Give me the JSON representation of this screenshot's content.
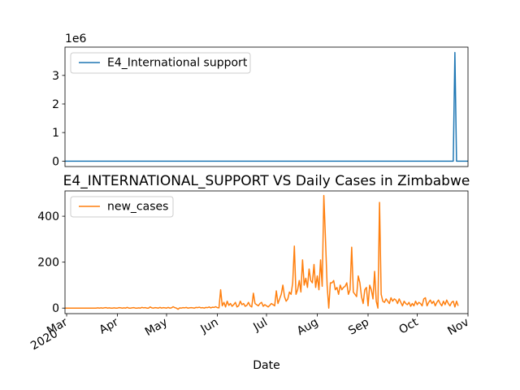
{
  "colors": {
    "series1": "#1f77b4",
    "series2": "#ff7f0e",
    "axis": "#000000",
    "legend_border": "#cccccc"
  },
  "chart_data": [
    {
      "type": "line",
      "title": "",
      "xlabel": "",
      "ylabel": "",
      "offset_text": "1e6",
      "xlim": [
        "2020-02-29",
        "2020-11-01"
      ],
      "ylim": [
        -0.19,
        3.99
      ],
      "yticks": [
        0,
        1,
        2,
        3
      ],
      "ytick_labels": [
        "0",
        "1",
        "2",
        "3"
      ],
      "legend": "upper left",
      "series": [
        {
          "name": "E4_International support",
          "values_unit": "1e6",
          "baseline": 0,
          "points": [
            {
              "x": "2020-10-23",
              "y": 0
            },
            {
              "x": "2020-10-24",
              "y": 3.8
            },
            {
              "x": "2020-10-25",
              "y": 0
            }
          ]
        }
      ]
    },
    {
      "type": "line",
      "title": "E4_INTERNATIONAL_SUPPORT VS Daily Cases in Zimbabwe",
      "xlabel": "Date",
      "ylabel": "",
      "xlim": [
        "2020-02-29",
        "2020-11-01"
      ],
      "ylim": [
        -24,
        510
      ],
      "yticks": [
        0,
        200,
        400
      ],
      "ytick_labels": [
        "0",
        "200",
        "400"
      ],
      "xticks": [
        "2020-03-01",
        "2020-04-01",
        "2020-05-01",
        "2020-06-01",
        "2020-07-01",
        "2020-08-01",
        "2020-09-01",
        "2020-10-01",
        "2020-11-01"
      ],
      "xtick_labels": [
        "Mar\n2020",
        "Apr",
        "May",
        "Jun",
        "Jul",
        "Aug",
        "Sep",
        "Oct",
        "Nov"
      ],
      "legend": "upper left",
      "series": [
        {
          "name": "new_cases",
          "start": "2020-02-29",
          "values": [
            0,
            0,
            0,
            0,
            0,
            0,
            0,
            0,
            0,
            0,
            0,
            0,
            0,
            0,
            0,
            0,
            0,
            0,
            0,
            0,
            1,
            0,
            1,
            0,
            1,
            2,
            0,
            1,
            0,
            0,
            1,
            0,
            0,
            2,
            1,
            0,
            1,
            0,
            3,
            0,
            0,
            1,
            2,
            0,
            0,
            1,
            0,
            3,
            1,
            2,
            0,
            0,
            5,
            1,
            0,
            2,
            1,
            0,
            3,
            0,
            2,
            1,
            0,
            3,
            0,
            1,
            6,
            2,
            0,
            -5,
            1,
            0,
            2,
            1,
            3,
            0,
            1,
            2,
            1,
            0,
            3,
            2,
            4,
            1,
            2,
            0,
            3,
            2,
            5,
            1,
            4,
            3,
            6,
            2,
            1,
            80,
            10,
            25,
            5,
            30,
            12,
            20,
            8,
            15,
            25,
            5,
            10,
            30,
            15,
            20,
            8,
            12,
            25,
            10,
            5,
            65,
            20,
            15,
            10,
            20,
            25,
            8,
            15,
            10,
            5,
            12,
            20,
            15,
            10,
            75,
            20,
            40,
            60,
            100,
            50,
            30,
            40,
            70,
            60,
            110,
            270,
            60,
            80,
            120,
            70,
            210,
            100,
            130,
            90,
            170,
            120,
            110,
            190,
            90,
            140,
            80,
            210,
            95,
            490,
            300,
            100,
            0,
            110,
            110,
            120,
            80,
            90,
            60,
            100,
            80,
            90,
            95,
            110,
            60,
            80,
            265,
            70,
            60,
            50,
            140,
            110,
            50,
            20,
            80,
            90,
            10,
            100,
            80,
            40,
            160,
            30,
            0,
            460,
            60,
            30,
            25,
            40,
            30,
            20,
            45,
            30,
            40,
            35,
            20,
            40,
            25,
            10,
            30,
            20,
            15,
            25,
            8,
            20,
            10,
            30,
            15,
            25,
            20,
            10,
            40,
            45,
            10,
            25,
            35,
            20,
            30,
            10,
            25,
            35,
            20,
            10,
            30,
            15,
            35,
            20,
            10,
            25,
            30,
            5,
            30,
            10
          ]
        }
      ]
    }
  ]
}
